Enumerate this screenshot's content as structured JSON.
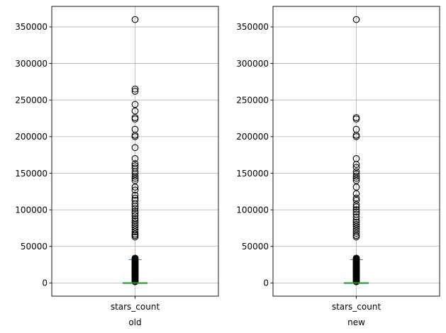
{
  "chart_data": [
    {
      "type": "boxplot",
      "xlabel": "old",
      "categories": [
        "stars_count"
      ],
      "ylim": [
        -18000,
        378000
      ],
      "yticks": [
        0,
        50000,
        100000,
        150000,
        200000,
        250000,
        300000,
        350000
      ],
      "ytick_labels": [
        "0",
        "50000",
        "100000",
        "150000",
        "200000",
        "250000",
        "300000",
        "350000"
      ],
      "grid": true,
      "box": {
        "q1": 0,
        "median": 100,
        "q3": 300,
        "whisker_low": 0,
        "whisker_high": 32000
      },
      "outliers": [
        360000,
        265000,
        262000,
        244000,
        235000,
        226000,
        224000,
        210000,
        202000,
        200000,
        185000,
        170000,
        163000,
        160000,
        157000,
        152000,
        149000,
        146000,
        143000,
        140000,
        131000,
        127000,
        120000,
        116000,
        113000,
        108000,
        105000,
        102000,
        98000,
        95000,
        92000,
        88000,
        85000,
        82000,
        79000,
        76000,
        73000,
        70000,
        67000,
        65000,
        63000,
        34000,
        33000
      ],
      "median_color": "#2ca02c",
      "colors": {
        "outlier_edge": "#000000",
        "grid": "#b0b0b0",
        "frame": "#000000"
      }
    },
    {
      "type": "boxplot",
      "xlabel": "new",
      "categories": [
        "stars_count"
      ],
      "ylim": [
        -18000,
        378000
      ],
      "yticks": [
        0,
        50000,
        100000,
        150000,
        200000,
        250000,
        300000,
        350000
      ],
      "ytick_labels": [
        "0",
        "50000",
        "100000",
        "150000",
        "200000",
        "250000",
        "300000",
        "350000"
      ],
      "grid": true,
      "box": {
        "q1": 0,
        "median": 100,
        "q3": 300,
        "whisker_low": 0,
        "whisker_high": 32000
      },
      "outliers": [
        360000,
        226000,
        224000,
        210000,
        202000,
        200000,
        170000,
        162000,
        158000,
        152000,
        149000,
        146000,
        143000,
        140000,
        131000,
        122000,
        116000,
        113000,
        107000,
        104000,
        100000,
        97000,
        94000,
        90000,
        86000,
        83000,
        80000,
        77000,
        74000,
        71000,
        68000,
        65000,
        63000,
        34000,
        33000
      ],
      "median_color": "#2ca02c",
      "colors": {
        "outlier_edge": "#000000",
        "grid": "#b0b0b0",
        "frame": "#000000"
      }
    }
  ]
}
